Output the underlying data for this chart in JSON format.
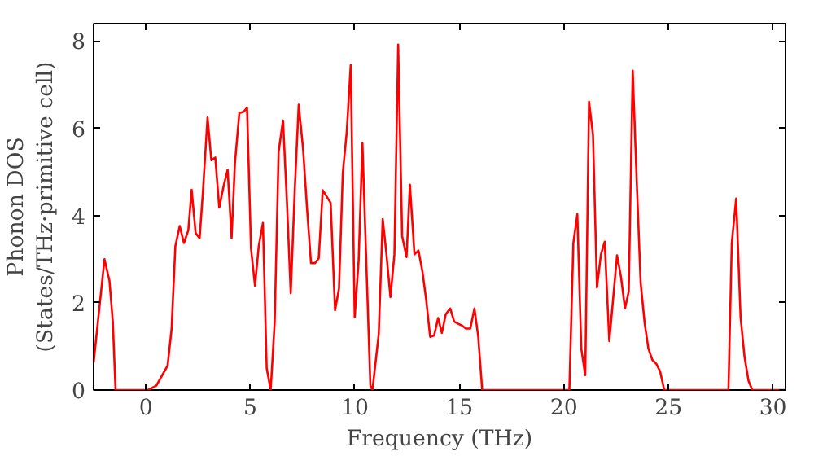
{
  "chart_data": {
    "type": "line",
    "xlabel": "Frequency (THz)",
    "ylabel": "Phonon DOS\n(States/THz·primitive cell)",
    "xlim": [
      -2.5,
      30.6
    ],
    "ylim": [
      0,
      8.4
    ],
    "xticks": [
      0,
      5,
      10,
      15,
      20,
      25,
      30
    ],
    "yticks": [
      0,
      2,
      4,
      6,
      8
    ],
    "grid": false,
    "series": [
      {
        "color": "#ff0000",
        "x": [
          -2.5,
          -1.98,
          -1.74,
          -1.58,
          -1.45,
          0.1,
          0.5,
          1.04,
          1.23,
          1.41,
          1.62,
          1.82,
          2.03,
          2.19,
          2.38,
          2.57,
          2.73,
          2.95,
          3.13,
          3.32,
          3.51,
          3.72,
          3.91,
          4.1,
          4.26,
          4.47,
          4.68,
          4.84,
          5.03,
          5.22,
          5.4,
          5.6,
          5.78,
          5.97,
          6.16,
          6.35,
          6.56,
          6.75,
          6.93,
          7.12,
          7.31,
          7.52,
          7.71,
          7.9,
          8.09,
          8.27,
          8.46,
          8.84,
          9.05,
          9.24,
          9.42,
          9.61,
          9.8,
          9.99,
          10.18,
          10.36,
          10.55,
          10.74,
          10.84,
          11.14,
          11.33,
          11.51,
          11.7,
          11.89,
          12.07,
          12.26,
          12.47,
          12.63,
          12.85,
          13.04,
          13.23,
          13.41,
          13.6,
          13.79,
          13.98,
          14.16,
          14.35,
          14.56,
          14.75,
          14.94,
          15.12,
          15.31,
          15.52,
          15.72,
          15.9,
          16.09,
          20.26,
          20.45,
          20.64,
          20.83,
          21.02,
          21.2,
          21.39,
          21.58,
          21.77,
          21.95,
          22.17,
          22.35,
          22.54,
          22.73,
          22.92,
          23.1,
          23.29,
          23.48,
          23.67,
          23.86,
          24.04,
          24.23,
          24.42,
          24.6,
          24.8,
          27.87,
          28.03,
          28.24,
          28.45,
          28.64,
          28.83,
          29.01,
          30.6
        ],
        "values": [
          0.63,
          3.0,
          2.5,
          1.55,
          0,
          0,
          0.1,
          0.56,
          1.4,
          3.3,
          3.76,
          3.37,
          3.66,
          4.59,
          3.6,
          3.48,
          4.55,
          6.25,
          5.27,
          5.33,
          4.18,
          4.68,
          5.05,
          3.48,
          5.2,
          6.35,
          6.38,
          6.47,
          3.24,
          2.39,
          3.3,
          3.83,
          0.5,
          0,
          1.54,
          5.46,
          6.18,
          4.29,
          2.22,
          4.55,
          6.54,
          5.53,
          4.16,
          2.91,
          2.91,
          3.02,
          4.58,
          4.29,
          1.83,
          2.33,
          4.97,
          5.92,
          7.45,
          1.67,
          2.98,
          5.66,
          2.85,
          0.1,
          0,
          1.28,
          3.92,
          3.11,
          2.13,
          3.11,
          7.92,
          3.53,
          3.05,
          4.71,
          3.11,
          3.2,
          2.72,
          2.07,
          1.22,
          1.25,
          1.65,
          1.31,
          1.74,
          1.87,
          1.57,
          1.52,
          1.48,
          1.41,
          1.41,
          1.87,
          1.22,
          0,
          0,
          3.37,
          4.03,
          0.95,
          0.34,
          6.61,
          5.85,
          2.35,
          3.11,
          3.4,
          1.12,
          2.07,
          3.09,
          2.59,
          1.87,
          2.26,
          7.32,
          4.81,
          2.46,
          1.54,
          0.95,
          0.69,
          0.6,
          0.43,
          0,
          0,
          3.37,
          4.39,
          1.67,
          0.76,
          0.21,
          0,
          0
        ]
      }
    ]
  }
}
